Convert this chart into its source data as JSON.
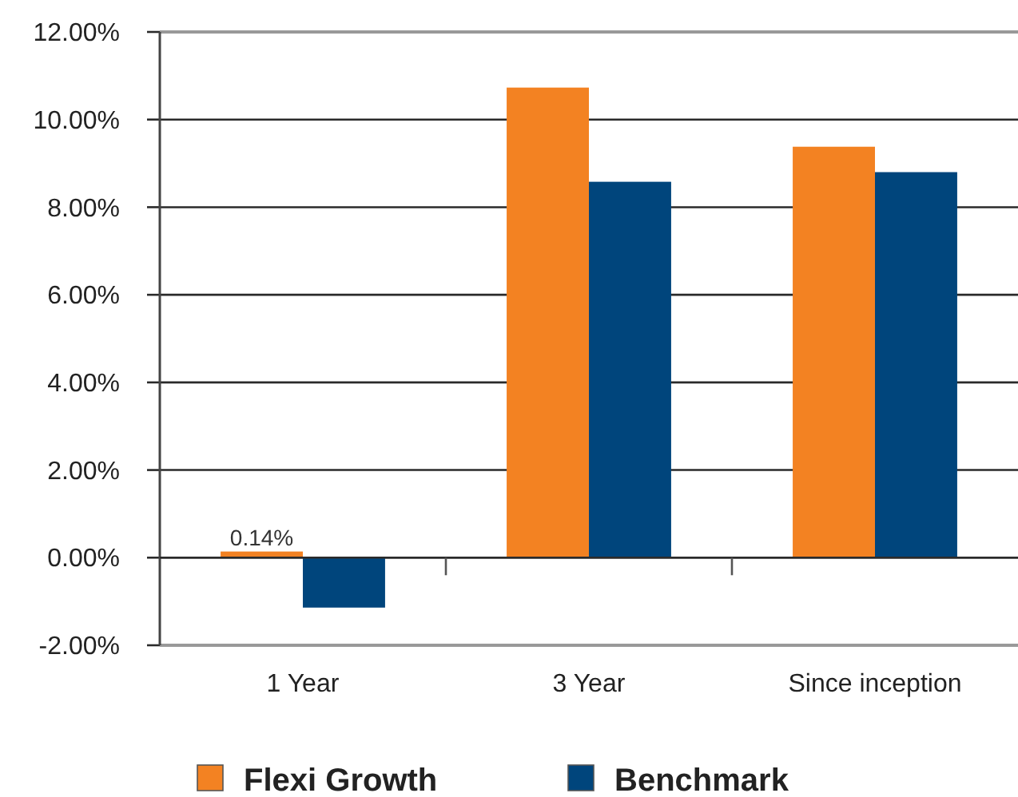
{
  "chart_data": {
    "type": "bar",
    "categories": [
      "1 Year",
      "3 Year",
      "Since inception"
    ],
    "series": [
      {
        "name": "Flexi Growth",
        "color": "#f38222",
        "values": [
          0.14,
          10.73,
          9.38
        ],
        "value_labels": [
          "0.14%",
          null,
          null
        ]
      },
      {
        "name": "Benchmark",
        "color": "#00457c",
        "values": [
          -1.14,
          8.58,
          8.8
        ]
      }
    ],
    "ylim": [
      -2,
      12
    ],
    "yticks": [
      {
        "value": -2,
        "label": "-2.00%"
      },
      {
        "value": 0,
        "label": "0.00%"
      },
      {
        "value": 2,
        "label": "2.00%"
      },
      {
        "value": 4,
        "label": "4.00%"
      },
      {
        "value": 6,
        "label": "6.00%"
      },
      {
        "value": 8,
        "label": "8.00%"
      },
      {
        "value": 10,
        "label": "10.00%"
      },
      {
        "value": 12,
        "label": "12.00%"
      }
    ],
    "grid": "y",
    "legend": "bottom"
  }
}
